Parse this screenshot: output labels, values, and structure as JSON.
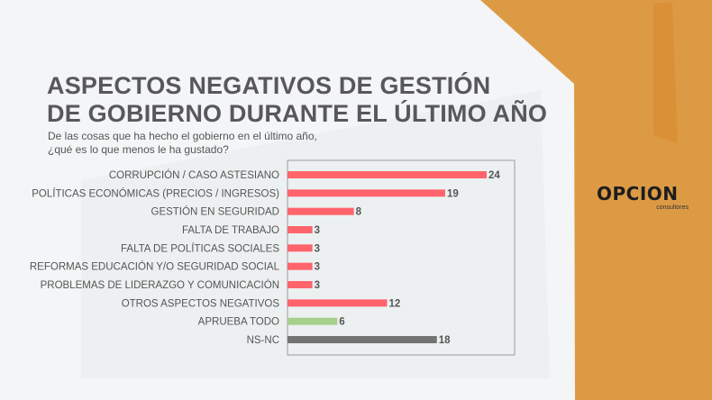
{
  "title_line1": "ASPECTOS NEGATIVOS DE GESTIÓN",
  "title_line2": "DE GOBIERNO DURANTE EL ÚLTIMO AÑO",
  "subtitle_line1": "De las cosas que ha hecho el gobierno en el último año,",
  "subtitle_line2": "¿qué es lo que menos le ha gustado?",
  "logo": {
    "main": "OPCION",
    "sub": "consultores"
  },
  "colors": {
    "negative": "#ff646c",
    "approve": "#a8d08d",
    "nsnc": "#737373",
    "accent": "#dd9a45"
  },
  "chart_data": {
    "type": "bar",
    "orientation": "horizontal",
    "categories": [
      "CORRUPCIÓN / CASO ASTESIANO",
      "POLÍTICAS ECONÓMICAS (PRECIOS / INGRESOS)",
      "GESTIÓN EN SEGURIDAD",
      "FALTA DE TRABAJO",
      "FALTA DE POLÍTICAS SOCIALES",
      "REFORMAS EDUCACIÓN Y/O SEGURIDAD SOCIAL",
      "PROBLEMAS DE LIDERAZGO Y COMUNICACIÓN",
      "OTROS ASPECTOS NEGATIVOS",
      "APRUEBA TODO",
      "NS-NC"
    ],
    "values": [
      24,
      19,
      8,
      3,
      3,
      3,
      3,
      12,
      6,
      18
    ],
    "bar_colors": [
      "#ff646c",
      "#ff646c",
      "#ff646c",
      "#ff646c",
      "#ff646c",
      "#ff646c",
      "#ff646c",
      "#ff646c",
      "#a8d08d",
      "#737373"
    ],
    "xlim": [
      0,
      27
    ],
    "grid": false,
    "legend": "none"
  }
}
